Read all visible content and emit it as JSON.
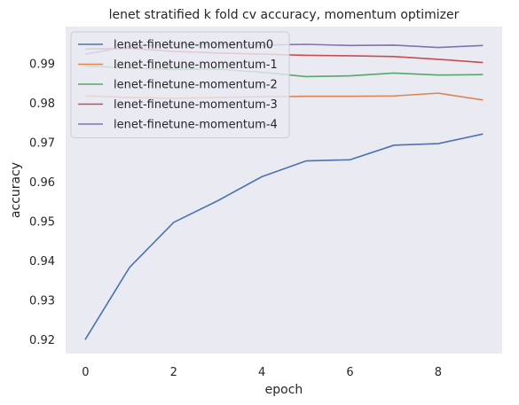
{
  "chart_data": {
    "type": "line",
    "title": "lenet stratified k fold cv accuracy, momentum optimizer",
    "xlabel": "epoch",
    "ylabel": "accuracy",
    "xlim": [
      -0.45,
      9.45
    ],
    "ylim": [
      0.9165,
      0.9995
    ],
    "x_ticks": [
      0,
      2,
      4,
      6,
      8
    ],
    "y_ticks": [
      0.92,
      0.93,
      0.94,
      0.95,
      0.96,
      0.97,
      0.98,
      0.99
    ],
    "x_tick_labels": [
      "0",
      "2",
      "4",
      "6",
      "8"
    ],
    "y_tick_labels": [
      "0.92",
      "0.93",
      "0.94",
      "0.95",
      "0.96",
      "0.97",
      "0.98",
      "0.99"
    ],
    "x": [
      0,
      1,
      2,
      3,
      4,
      5,
      6,
      7,
      8,
      9
    ],
    "grid": false,
    "background": "#eaeaf2",
    "legend_position": "upper-left",
    "series": [
      {
        "name": "lenet-finetune-momentum0",
        "color": "#4c72b0",
        "values": [
          0.9202,
          0.9384,
          0.9498,
          0.9553,
          0.9614,
          0.9654,
          0.9657,
          0.9694,
          0.9698,
          0.9722
        ]
      },
      {
        "name": "lenet-finetune-momentum-1",
        "color": "#dd8452",
        "values": [
          0.9819,
          0.9815,
          0.9813,
          0.9815,
          0.9817,
          0.9818,
          0.9818,
          0.9819,
          0.9826,
          0.9809
        ]
      },
      {
        "name": "lenet-finetune-momentum-2",
        "color": "#55a868",
        "values": [
          0.9895,
          0.989,
          0.9886,
          0.9887,
          0.9879,
          0.9868,
          0.987,
          0.9877,
          0.9872,
          0.9873
        ]
      },
      {
        "name": "lenet-finetune-momentum-3",
        "color": "#c44e52",
        "values": [
          0.9938,
          0.994,
          0.9932,
          0.9928,
          0.9925,
          0.9922,
          0.9921,
          0.9919,
          0.9912,
          0.9904
        ]
      },
      {
        "name": "lenet-finetune-momentum-4",
        "color": "#8172b3",
        "values": [
          0.9925,
          0.9945,
          0.995,
          0.995,
          0.9948,
          0.995,
          0.9947,
          0.9948,
          0.9942,
          0.9947
        ]
      }
    ]
  }
}
